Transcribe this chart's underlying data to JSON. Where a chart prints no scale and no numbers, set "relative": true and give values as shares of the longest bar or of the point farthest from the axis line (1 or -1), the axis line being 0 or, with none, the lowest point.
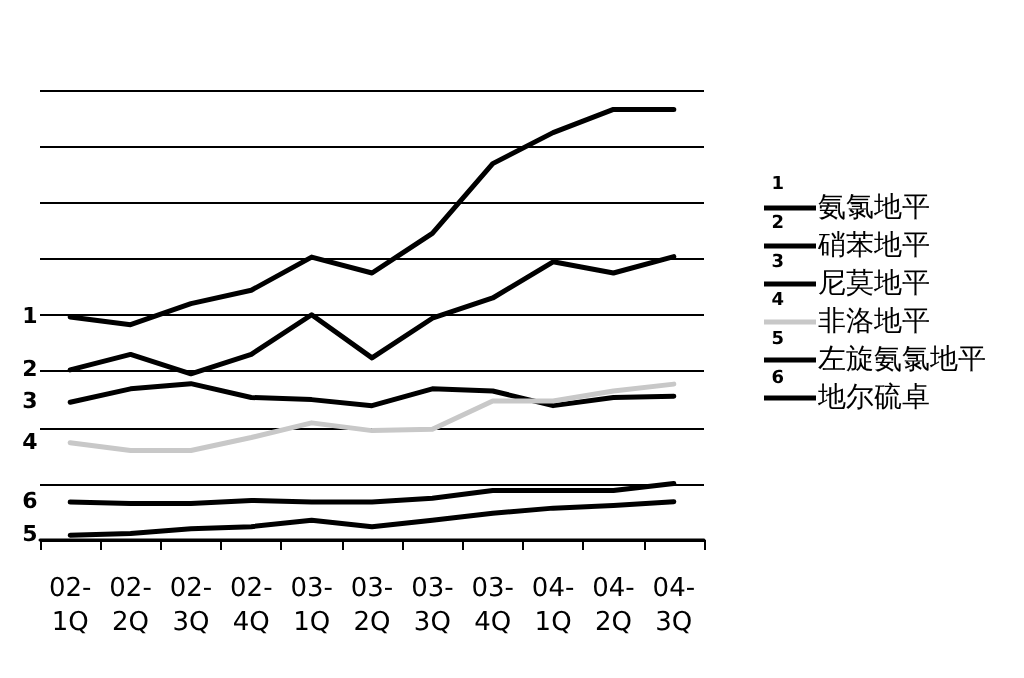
{
  "chart_data": {
    "type": "line",
    "relative": true,
    "grid": "y",
    "legend": "right",
    "marker": "none",
    "line_style": "solid",
    "categories": [
      "02-1Q",
      "02-2Q",
      "02-3Q",
      "02-4Q",
      "03-1Q",
      "03-2Q",
      "03-3Q",
      "03-4Q",
      "04-1Q",
      "04-2Q",
      "04-3Q"
    ],
    "series": [
      {
        "name": "氨氯地平",
        "color": "#000000",
        "values": [
          0.518,
          0.5,
          0.549,
          0.58,
          0.657,
          0.62,
          0.712,
          0.874,
          0.946,
          1,
          1
        ]
      },
      {
        "name": "硝苯地平",
        "color": "#000000",
        "values": [
          0.395,
          0.431,
          0.386,
          0.431,
          0.523,
          0.423,
          0.515,
          0.562,
          0.646,
          0.62,
          0.658
        ]
      },
      {
        "name": "尼莫地平",
        "color": "#000000",
        "values": [
          0.32,
          0.351,
          0.363,
          0.331,
          0.326,
          0.312,
          0.351,
          0.346,
          0.312,
          0.331,
          0.334
        ]
      },
      {
        "name": "非洛地平",
        "color": "#c8c8c8",
        "values": [
          0.226,
          0.208,
          0.208,
          0.238,
          0.272,
          0.254,
          0.257,
          0.323,
          0.323,
          0.346,
          0.362
        ]
      },
      {
        "name": "左旋氨氯地平",
        "color": "#000000",
        "values": [
          0.011,
          0.015,
          0.026,
          0.031,
          0.046,
          0.031,
          0.046,
          0.062,
          0.074,
          0.08,
          0.089
        ]
      },
      {
        "name": "地尔硫卓",
        "color": "#000000",
        "values": [
          0.088,
          0.085,
          0.085,
          0.092,
          0.088,
          0.088,
          0.097,
          0.115,
          0.115,
          0.115,
          0.131
        ]
      }
    ],
    "annotations": [
      {
        "text": "1",
        "x": "02-1Q",
        "y": 0.518
      },
      {
        "text": "2",
        "x": "02-1Q",
        "y": 0.395
      },
      {
        "text": "3",
        "x": "02-1Q",
        "y": 0.32
      },
      {
        "text": "4",
        "x": "02-1Q",
        "y": 0.226
      },
      {
        "text": "5",
        "x": "02-1Q",
        "y": 0.011
      },
      {
        "text": "6",
        "x": "02-1Q",
        "y": 0.088
      }
    ]
  }
}
